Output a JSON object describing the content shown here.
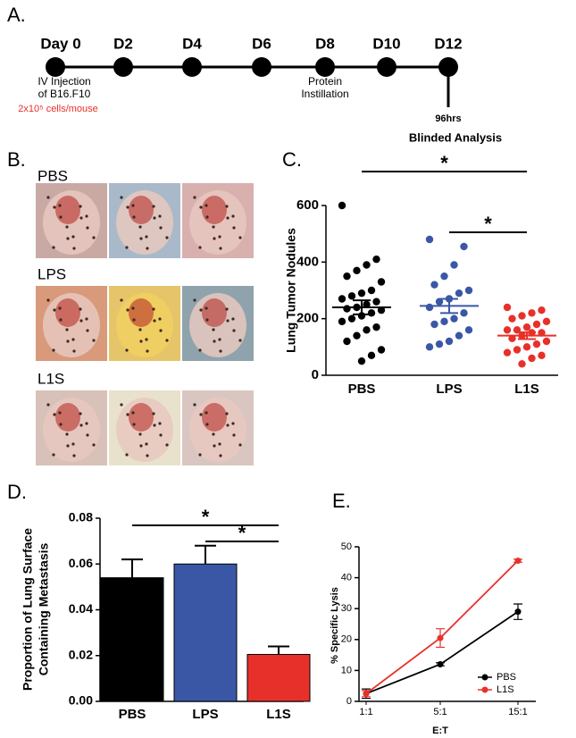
{
  "panel_labels": [
    "A.",
    "B.",
    "C.",
    "D.",
    "E."
  ],
  "timeline": {
    "days": [
      "Day 0",
      "D2",
      "D4",
      "D6",
      "D8",
      "D10",
      "D12"
    ],
    "injection": [
      "IV Injection",
      "of B16.F10"
    ],
    "dose": "2x10⁵ cells/mouse",
    "instillation": [
      "Protein",
      "Instillation"
    ],
    "hours": "96hrs",
    "analysis": "Blinded Analysis"
  },
  "photos": {
    "rows": [
      {
        "label": "PBS"
      },
      {
        "label": "LPS"
      },
      {
        "label": "L1S"
      }
    ]
  },
  "chart_data": [
    {
      "type": "dotplot",
      "ylabel": "Lung Tumor Nodules",
      "categories": [
        "PBS",
        "LPS",
        "L1S"
      ],
      "groups": [
        {
          "color": "#000000",
          "mean": 240,
          "sem": 25,
          "values": [
            600,
            410,
            390,
            370,
            350,
            330,
            300,
            290,
            280,
            270,
            260,
            250,
            240,
            235,
            230,
            220,
            210,
            200,
            190,
            170,
            160,
            140,
            120,
            90,
            70,
            50
          ]
        },
        {
          "color": "#3a57a6",
          "mean": 245,
          "sem": 25,
          "values": [
            480,
            455,
            390,
            350,
            320,
            300,
            290,
            270,
            260,
            240,
            220,
            200,
            190,
            180,
            160,
            140,
            120,
            110,
            100
          ]
        },
        {
          "color": "#e8302a",
          "mean": 140,
          "sem": 12,
          "values": [
            240,
            230,
            220,
            210,
            200,
            190,
            180,
            170,
            160,
            160,
            150,
            150,
            140,
            130,
            120,
            110,
            100,
            90,
            80,
            70,
            60,
            40
          ]
        }
      ],
      "ylim": [
        0,
        600
      ],
      "yticks": [
        0,
        200,
        400,
        600
      ],
      "significance": [
        {
          "label": "*",
          "between": [
            "PBS",
            "L1S"
          ]
        },
        {
          "label": "*",
          "between": [
            "LPS",
            "L1S"
          ]
        }
      ]
    },
    {
      "type": "bar",
      "ylabel": [
        "Proportion of Lung Surface",
        "Containing Metastasis"
      ],
      "categories": [
        "PBS",
        "LPS",
        "L1S"
      ],
      "values": [
        0.054,
        0.06,
        0.0205
      ],
      "errors": [
        0.008,
        0.008,
        0.0035
      ],
      "colors": [
        "#000000",
        "#3a57a6",
        "#e8302a"
      ],
      "ylim": [
        0,
        0.08
      ],
      "yticks": [
        {
          "value": 0,
          "label": "0.00"
        },
        {
          "value": 0.02,
          "label": "0.02"
        },
        {
          "value": 0.04,
          "label": "0.04"
        },
        {
          "value": 0.06,
          "label": "0.06"
        },
        {
          "value": 0.08,
          "label": "0.08"
        }
      ],
      "significance": [
        {
          "label": "*",
          "between": [
            "PBS",
            "L1S"
          ]
        },
        {
          "label": "*",
          "between": [
            "LPS",
            "L1S"
          ]
        }
      ]
    },
    {
      "type": "line",
      "xlabel": "E:T",
      "ylabel": "% Specific Lysis",
      "categories": [
        "1:1",
        "5:1",
        "15:1"
      ],
      "series": [
        {
          "name": "PBS",
          "color": "#000000",
          "values": [
            2.5,
            12,
            29
          ],
          "errors": [
            1.5,
            0.5,
            2.5
          ]
        },
        {
          "name": "L1S",
          "color": "#e8302a",
          "values": [
            2.5,
            20.5,
            45.5
          ],
          "errors": [
            1,
            3,
            0.5
          ]
        }
      ],
      "ylim": [
        0,
        50
      ],
      "yticks": [
        0,
        10,
        20,
        30,
        40,
        50
      ],
      "legend": "lower-right"
    }
  ]
}
